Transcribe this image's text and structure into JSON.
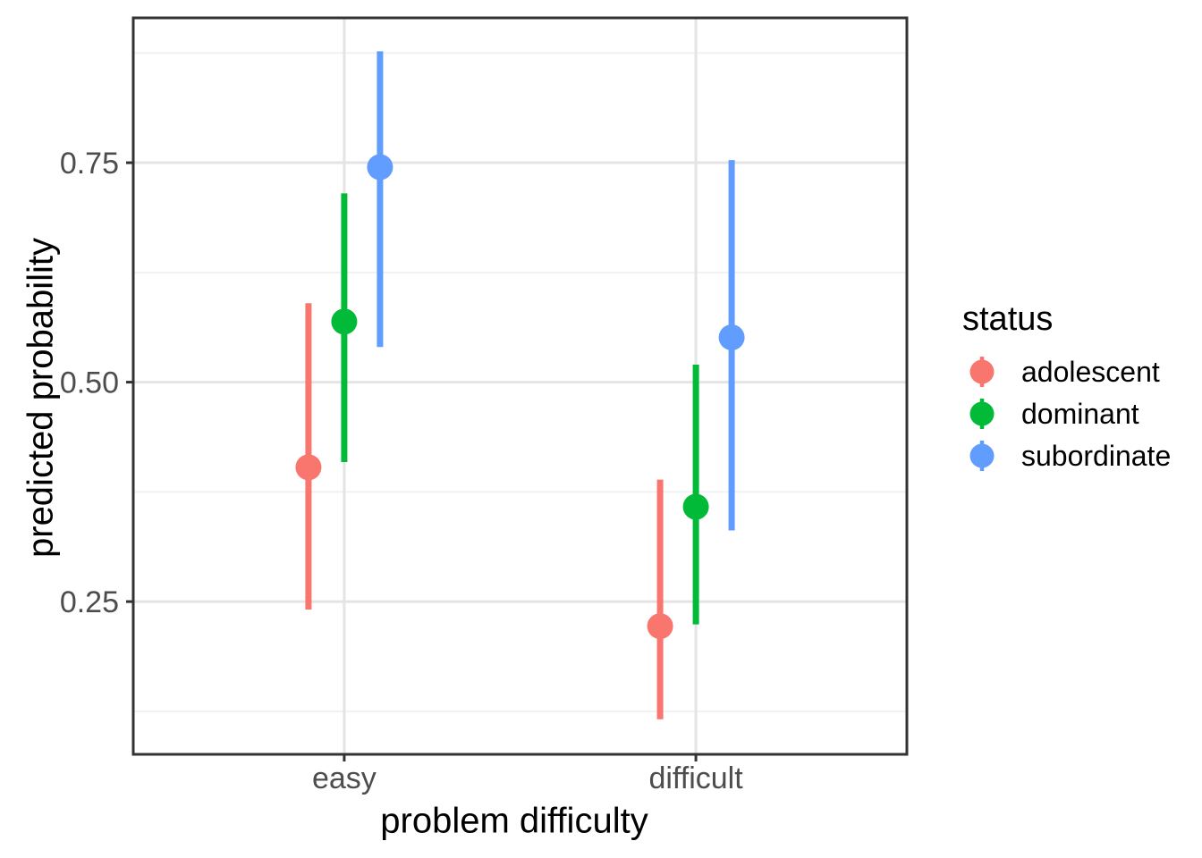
{
  "chart_data": {
    "type": "pointrange",
    "title": "",
    "xlabel": "problem difficulty",
    "ylabel": "predicted probability",
    "categories": [
      "easy",
      "difficult"
    ],
    "y_ticks": [
      0.25,
      0.5,
      0.75
    ],
    "y_tick_labels": [
      "0.25",
      "0.50",
      "0.75"
    ],
    "y_minor_gridlines": [
      0.125,
      0.375,
      0.625,
      0.875
    ],
    "ylim": [
      0.076,
      0.915
    ],
    "grid": true,
    "legend": {
      "title": "status",
      "position": "right"
    },
    "series": [
      {
        "name": "adolescent",
        "color": "#F8766D",
        "points": [
          {
            "x": "easy",
            "y": 0.403,
            "ymin": 0.241,
            "ymax": 0.59
          },
          {
            "x": "difficult",
            "y": 0.222,
            "ymin": 0.116,
            "ymax": 0.389
          }
        ]
      },
      {
        "name": "dominant",
        "color": "#00BA38",
        "points": [
          {
            "x": "easy",
            "y": 0.569,
            "ymin": 0.409,
            "ymax": 0.715
          },
          {
            "x": "difficult",
            "y": 0.358,
            "ymin": 0.224,
            "ymax": 0.52
          }
        ]
      },
      {
        "name": "subordinate",
        "color": "#619CFF",
        "points": [
          {
            "x": "easy",
            "y": 0.745,
            "ymin": 0.54,
            "ymax": 0.877
          },
          {
            "x": "difficult",
            "y": 0.551,
            "ymin": 0.331,
            "ymax": 0.753
          }
        ]
      }
    ]
  },
  "theme": {
    "panel_background": "#FFFFFF",
    "panel_border_color": "#333333",
    "grid_major_color": "#E4E4E4",
    "grid_minor_color": "#F1F1F1",
    "tick_color": "#333333",
    "tick_label_color": "#4D4D4D",
    "axis_title_color": "#000000",
    "legend_text_color": "#000000"
  }
}
